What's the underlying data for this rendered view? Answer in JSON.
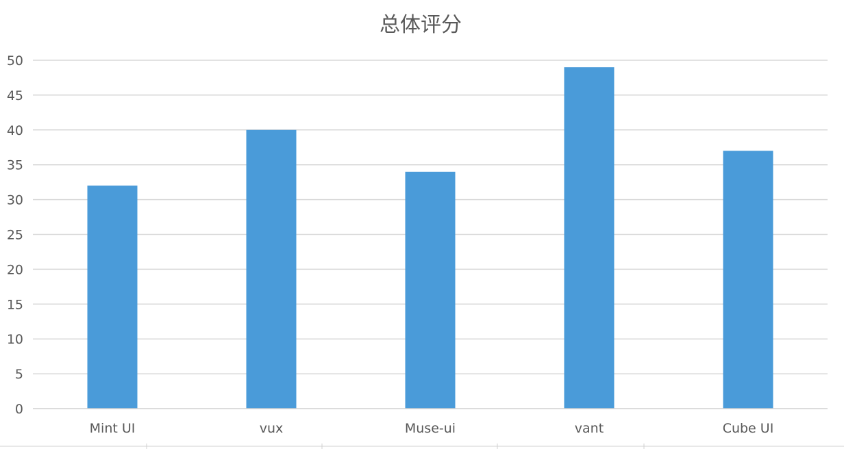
{
  "chart_data": {
    "type": "bar",
    "title": "总体评分",
    "categories": [
      "Mint UI",
      "vux",
      "Muse-ui",
      "vant",
      "Cube UI"
    ],
    "series": [
      {
        "values": [
          32,
          40,
          34,
          49,
          37
        ]
      }
    ],
    "ylim": [
      0,
      50
    ],
    "yticks": [
      0,
      5,
      10,
      15,
      20,
      25,
      30,
      35,
      40,
      45,
      50
    ],
    "grid": true,
    "legend": "none",
    "bar_color": "#4a9bd9"
  }
}
